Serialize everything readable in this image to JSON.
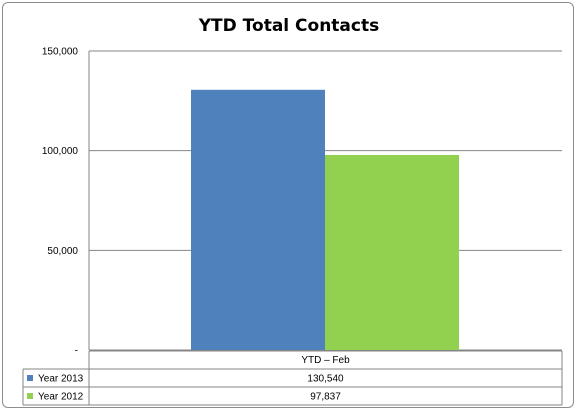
{
  "chart_data": {
    "type": "bar",
    "title": "YTD Total Contacts",
    "categories": [
      "YTD – Feb"
    ],
    "series": [
      {
        "name": "Year 2013",
        "values": [
          130540
        ],
        "value_labels": [
          "130,540"
        ],
        "color": "#4f81bd"
      },
      {
        "name": "Year 2012",
        "values": [
          97837
        ],
        "value_labels": [
          "97,837"
        ],
        "color": "#92d050"
      }
    ],
    "ylim": [
      0,
      150000
    ],
    "yticks": [
      0,
      50000,
      100000,
      150000
    ],
    "ytick_labels": [
      "-",
      "50,000",
      "100,000",
      "150,000"
    ],
    "grid": true,
    "legend": "data-table"
  }
}
